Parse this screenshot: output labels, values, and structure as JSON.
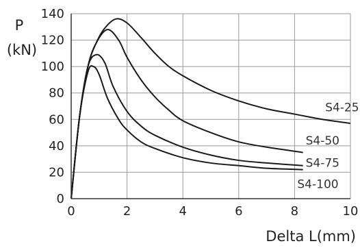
{
  "chart_data": {
    "type": "line",
    "title": "",
    "xlabel": "Delta L(mm)",
    "ylabel": "P",
    "ylabel_unit": "(kN)",
    "xlim": [
      0,
      10
    ],
    "ylim": [
      0,
      140
    ],
    "xticks": [
      0,
      2,
      4,
      6,
      8,
      10
    ],
    "yticks": [
      0,
      20,
      40,
      60,
      80,
      100,
      120,
      140
    ],
    "grid": true,
    "legend": "none (series labeled inline at right end)",
    "series": [
      {
        "name": "S4-25",
        "x": [
          0,
          0.3,
          0.6,
          0.9,
          1.2,
          1.6,
          2.0,
          2.5,
          3.0,
          3.5,
          4.0,
          5.0,
          6.0,
          7.0,
          8.0,
          9.0,
          10.0
        ],
        "y": [
          0,
          62,
          100,
          118,
          129,
          136,
          133,
          122,
          110,
          100,
          93,
          82,
          74,
          68,
          64,
          60,
          57
        ]
      },
      {
        "name": "S4-50",
        "x": [
          0,
          0.3,
          0.6,
          0.9,
          1.3,
          1.7,
          2.0,
          2.5,
          3.0,
          3.5,
          4.0,
          5.0,
          6.0,
          7.0,
          8.3
        ],
        "y": [
          0,
          62,
          100,
          118,
          128,
          120,
          107,
          90,
          77,
          67,
          59,
          50,
          43,
          39,
          35
        ]
      },
      {
        "name": "S4-75",
        "x": [
          0,
          0.3,
          0.6,
          0.9,
          1.2,
          1.5,
          2.0,
          2.5,
          3.0,
          4.0,
          5.0,
          6.0,
          7.0,
          8.3
        ],
        "y": [
          0,
          62,
          100,
          109,
          103,
          85,
          66,
          55,
          48,
          39,
          33,
          29,
          27,
          25
        ]
      },
      {
        "name": "S4-100",
        "x": [
          0,
          0.3,
          0.6,
          0.8,
          1.0,
          1.3,
          1.7,
          2.0,
          2.5,
          3.0,
          4.0,
          5.0,
          6.0,
          7.0,
          8.3
        ],
        "y": [
          0,
          62,
          96,
          100,
          94,
          76,
          60,
          52,
          43,
          38,
          31,
          27,
          25,
          23,
          22
        ]
      }
    ],
    "series_labels": [
      "S4-25",
      "S4-50",
      "S4-75",
      "S4-100"
    ],
    "colors": {
      "lines": "#1a1a1a",
      "grid": "#999999",
      "axes": "#333333"
    }
  }
}
